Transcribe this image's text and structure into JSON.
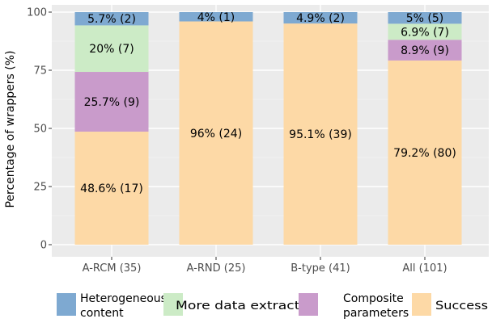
{
  "chart_data": {
    "type": "bar",
    "stacked": true,
    "ylabel": "Percentage of wrappers (%)",
    "xlabel": "",
    "ylim": [
      0,
      100
    ],
    "yticks": [
      0,
      25,
      50,
      75,
      100
    ],
    "grid": true,
    "legend_position": "bottom",
    "categories": [
      "A-RCM (35)",
      "A-RND (25)",
      "B-type (41)",
      "All (101)"
    ],
    "series": [
      {
        "name": "Success",
        "color": "#FDD9A6",
        "values": [
          48.6,
          96,
          95.1,
          79.2
        ],
        "labels": [
          "48.6% (17)",
          "96% (24)",
          "95.1% (39)",
          "79.2% (80)"
        ]
      },
      {
        "name": "Composite parameters",
        "color": "#C99BCB",
        "values": [
          25.7,
          0,
          0,
          8.9
        ],
        "labels": [
          "25.7% (9)",
          "",
          "",
          "8.9% (9)"
        ]
      },
      {
        "name": "More data extracted",
        "color": "#CCEBC6",
        "values": [
          20,
          0,
          0,
          6.9
        ],
        "labels": [
          "20% (7)",
          "",
          "",
          "6.9% (7)"
        ]
      },
      {
        "name": "Heterogeneous content",
        "color": "#7EA9D1",
        "values": [
          5.7,
          4,
          4.9,
          5
        ],
        "labels": [
          "5.7% (2)",
          "4% (1)",
          "4.9% (2)",
          "5% (5)"
        ]
      }
    ],
    "legend": [
      {
        "lines": [
          "Heterogeneous",
          "content"
        ],
        "color": "#7EA9D1"
      },
      {
        "lines": [
          "More data extracted"
        ],
        "color": "#CCEBC6"
      },
      {
        "lines": [
          "Composite",
          "parameters"
        ],
        "color": "#C99BCB"
      },
      {
        "lines": [
          "Success"
        ],
        "color": "#FDD9A6"
      }
    ]
  }
}
